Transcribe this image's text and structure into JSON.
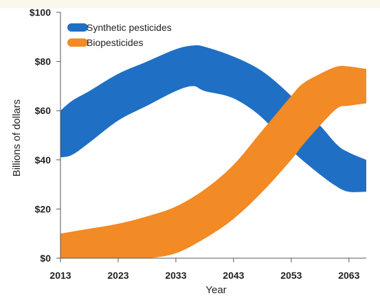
{
  "chart_data": {
    "type": "area",
    "xlabel": "Year",
    "ylabel": "Billions of dollars",
    "xlim": [
      2013,
      2066
    ],
    "ylim": [
      0,
      100
    ],
    "xticks": [
      2013,
      2023,
      2033,
      2043,
      2053,
      2063
    ],
    "xtick_labels": [
      "2013",
      "2023",
      "2033",
      "2043",
      "2053",
      "2063"
    ],
    "yticks": [
      0,
      20,
      40,
      60,
      80,
      100
    ],
    "ytick_labels": [
      "$0",
      "$20",
      "$40",
      "$60",
      "$80",
      "$100"
    ],
    "grid": false,
    "legend_position": "top-left",
    "series": [
      {
        "name": "Synthetic pesticides",
        "color": "#1f6fc4",
        "x": [
          2013,
          2015,
          2018,
          2023,
          2028,
          2033,
          2036,
          2038,
          2043,
          2048,
          2053,
          2058,
          2061,
          2063,
          2066
        ],
        "upper": [
          60,
          64,
          68,
          75,
          80,
          85,
          86.5,
          86,
          82,
          76,
          66,
          54,
          46,
          43,
          40
        ],
        "lower": [
          41,
          42,
          47,
          56,
          62,
          68,
          70,
          68,
          65,
          57,
          44,
          34,
          29,
          27,
          27
        ]
      },
      {
        "name": "Biopesticides",
        "color": "#f28a25",
        "x": [
          2013,
          2018,
          2023,
          2028,
          2033,
          2038,
          2043,
          2048,
          2053,
          2055,
          2058,
          2061,
          2063,
          2066
        ],
        "upper": [
          10,
          12,
          14,
          17,
          21,
          28,
          38,
          52,
          66,
          71,
          75,
          78,
          78,
          77
        ],
        "lower": [
          0,
          0,
          0,
          0,
          2,
          8,
          16,
          27,
          40,
          46,
          54,
          61,
          62,
          63
        ]
      }
    ]
  }
}
